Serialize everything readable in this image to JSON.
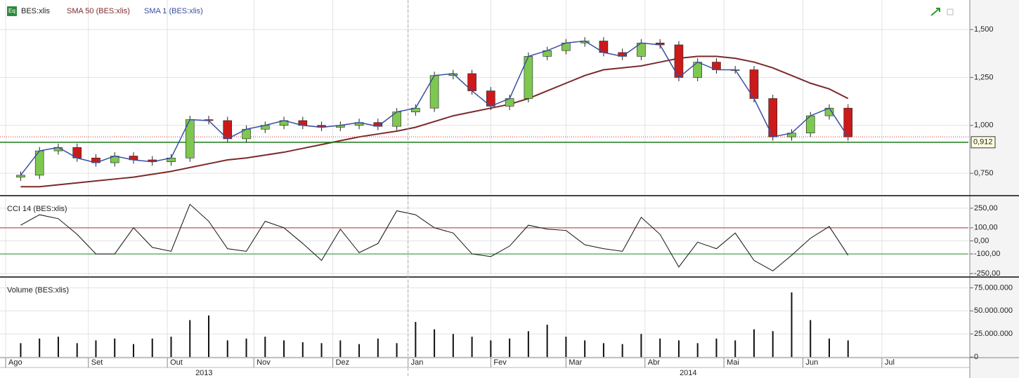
{
  "chart_data": [
    {
      "type": "candlestick",
      "title": "BES:xlis",
      "x": [
        4,
        9,
        14,
        19,
        24,
        29,
        34,
        39,
        44,
        49,
        54,
        59,
        64,
        69,
        74,
        79,
        84,
        89,
        94,
        99,
        104,
        109,
        114,
        119,
        124,
        129,
        134,
        139,
        144,
        149,
        154,
        159,
        164,
        169,
        174,
        179,
        184,
        189,
        194,
        199,
        204,
        209,
        214,
        219,
        224
      ],
      "open": [
        0.73,
        0.74,
        0.867,
        0.885,
        0.83,
        0.805,
        0.84,
        0.82,
        0.81,
        0.83,
        1.03,
        1.025,
        0.93,
        0.98,
        1.0,
        1.025,
        1.0,
        0.99,
        1.0,
        1.015,
        0.995,
        1.07,
        1.09,
        1.26,
        1.27,
        1.18,
        1.1,
        1.14,
        1.36,
        1.39,
        1.43,
        1.44,
        1.38,
        1.36,
        1.43,
        1.42,
        1.25,
        1.33,
        1.29,
        1.29,
        1.14,
        0.94,
        0.96,
        1.05,
        1.09
      ],
      "high": [
        0.76,
        0.887,
        0.905,
        0.905,
        0.85,
        0.86,
        0.86,
        0.84,
        0.85,
        1.05,
        1.05,
        1.045,
        1.0,
        1.02,
        1.045,
        1.045,
        1.02,
        1.02,
        1.035,
        1.035,
        1.09,
        1.11,
        1.28,
        1.29,
        1.29,
        1.2,
        1.16,
        1.38,
        1.41,
        1.45,
        1.46,
        1.46,
        1.4,
        1.45,
        1.45,
        1.44,
        1.35,
        1.35,
        1.31,
        1.31,
        1.16,
        0.98,
        1.07,
        1.11,
        1.11
      ],
      "low": [
        0.71,
        0.72,
        0.847,
        0.81,
        0.785,
        0.785,
        0.8,
        0.79,
        0.79,
        0.81,
        1.005,
        0.91,
        0.91,
        0.96,
        0.98,
        0.98,
        0.97,
        0.97,
        0.98,
        0.975,
        0.975,
        1.05,
        1.07,
        1.24,
        1.16,
        1.08,
        1.08,
        1.12,
        1.34,
        1.37,
        1.41,
        1.36,
        1.34,
        1.34,
        1.4,
        1.23,
        1.23,
        1.27,
        1.27,
        1.12,
        0.92,
        0.92,
        0.94,
        1.03,
        0.92
      ],
      "close": [
        0.74,
        0.867,
        0.885,
        0.83,
        0.805,
        0.84,
        0.82,
        0.81,
        0.83,
        1.03,
        1.025,
        0.93,
        0.98,
        1.0,
        1.025,
        1.0,
        0.99,
        1.0,
        1.015,
        0.995,
        1.07,
        1.09,
        1.26,
        1.27,
        1.18,
        1.1,
        1.14,
        1.36,
        1.39,
        1.43,
        1.44,
        1.38,
        1.36,
        1.43,
        1.42,
        1.25,
        1.33,
        1.29,
        1.29,
        1.14,
        0.94,
        0.96,
        1.05,
        1.09,
        0.94
      ],
      "up_color": "#7ec850",
      "down_color": "#cc1a1a",
      "close_line": {
        "name": "SMA 1 (BES:xlis)",
        "color": "#3a4fa0"
      },
      "sma": {
        "name": "SMA 50 (BES:xlis)",
        "color": "#7b2a2a",
        "values": [
          0.68,
          0.68,
          0.69,
          0.7,
          0.71,
          0.72,
          0.73,
          0.745,
          0.76,
          0.78,
          0.8,
          0.82,
          0.83,
          0.845,
          0.86,
          0.88,
          0.9,
          0.92,
          0.94,
          0.955,
          0.97,
          0.99,
          1.02,
          1.05,
          1.07,
          1.09,
          1.11,
          1.14,
          1.18,
          1.22,
          1.26,
          1.29,
          1.3,
          1.31,
          1.33,
          1.35,
          1.36,
          1.36,
          1.35,
          1.33,
          1.3,
          1.26,
          1.22,
          1.19,
          1.14
        ]
      },
      "hline": {
        "value": 0.912,
        "label": "0,912",
        "color": "#1a7a1a"
      },
      "xlim": [
        -1.5,
        256
      ],
      "ylim": [
        0.637,
        1.654
      ],
      "yticks": [
        {
          "value": 0.75,
          "label": "0,750"
        },
        {
          "value": 1.0,
          "label": "1,000"
        },
        {
          "value": 1.25,
          "label": "1,250"
        },
        {
          "value": 1.5,
          "label": "1,500"
        }
      ]
    },
    {
      "type": "line",
      "title": "CCI 14 (BES:xlis)",
      "x": [
        4,
        9,
        14,
        19,
        24,
        29,
        34,
        39,
        44,
        49,
        54,
        59,
        64,
        69,
        74,
        79,
        84,
        89,
        94,
        99,
        104,
        109,
        114,
        119,
        124,
        129,
        134,
        139,
        144,
        149,
        154,
        159,
        164,
        169,
        174,
        179,
        184,
        189,
        194,
        199,
        204,
        209,
        214,
        219,
        224
      ],
      "values": [
        120,
        200,
        170,
        50,
        -100,
        -100,
        100,
        -50,
        -80,
        280,
        150,
        -60,
        -80,
        150,
        100,
        -20,
        -150,
        90,
        -90,
        -20,
        230,
        200,
        100,
        60,
        -100,
        -120,
        -40,
        120,
        90,
        80,
        -30,
        -60,
        -80,
        180,
        50,
        -200,
        -10,
        -60,
        60,
        -150,
        -230,
        -110,
        20,
        110,
        -110
      ],
      "color": "#111111",
      "reference_lines": [
        {
          "value": 100,
          "color": "#b03030"
        },
        {
          "value": -100,
          "color": "#2a8a2a"
        }
      ],
      "xlim": [
        -1.5,
        256
      ],
      "ylim": [
        -266,
        330
      ],
      "yticks": [
        {
          "value": -250,
          "label": "-250,00"
        },
        {
          "value": -100,
          "label": "-100,00"
        },
        {
          "value": 0,
          "label": "0,00"
        },
        {
          "value": 100,
          "label": "100,00"
        },
        {
          "value": 250,
          "label": "250,00"
        }
      ]
    },
    {
      "type": "bar",
      "title": "Volume (BES:xlis)",
      "x": [
        4,
        9,
        14,
        19,
        24,
        29,
        34,
        39,
        44,
        49,
        54,
        59,
        64,
        69,
        74,
        79,
        84,
        89,
        94,
        99,
        104,
        109,
        114,
        119,
        124,
        129,
        134,
        139,
        144,
        149,
        154,
        159,
        164,
        169,
        174,
        179,
        184,
        189,
        194,
        199,
        204,
        209,
        214,
        219,
        224
      ],
      "values": [
        15000000,
        20000000,
        22000000,
        15000000,
        18000000,
        20000000,
        14000000,
        20000000,
        22000000,
        40000000,
        45000000,
        18000000,
        20000000,
        22000000,
        18000000,
        16000000,
        15000000,
        18000000,
        14000000,
        20000000,
        15000000,
        38000000,
        30000000,
        25000000,
        22000000,
        18000000,
        20000000,
        28000000,
        35000000,
        22000000,
        18000000,
        15000000,
        14000000,
        25000000,
        20000000,
        18000000,
        15000000,
        20000000,
        18000000,
        30000000,
        28000000,
        70000000,
        40000000,
        20000000,
        18000000
      ],
      "color": "#111111",
      "xlim": [
        -1.5,
        256
      ],
      "ylim": [
        -700000,
        84400000
      ],
      "yticks": [
        {
          "value": 0,
          "label": "0"
        },
        {
          "value": 25000000,
          "label": "25.000.000"
        },
        {
          "value": 50000000,
          "label": "50.000.000"
        },
        {
          "value": 75000000,
          "label": "75.000.000"
        }
      ],
      "xticks": [
        {
          "value": 0,
          "label": "Ago"
        },
        {
          "value": 22,
          "label": "Set"
        },
        {
          "value": 43,
          "label": "Out"
        },
        {
          "value": 66,
          "label": "Nov"
        },
        {
          "value": 87,
          "label": "Dez"
        },
        {
          "value": 107,
          "label": "Jan"
        },
        {
          "value": 129,
          "label": "Fev"
        },
        {
          "value": 149,
          "label": "Mar"
        },
        {
          "value": 170,
          "label": "Abr"
        },
        {
          "value": 191,
          "label": "Mai"
        },
        {
          "value": 212,
          "label": "Jun"
        },
        {
          "value": 233,
          "label": "Jul"
        }
      ],
      "years": [
        "2013",
        "2014"
      ]
    }
  ]
}
